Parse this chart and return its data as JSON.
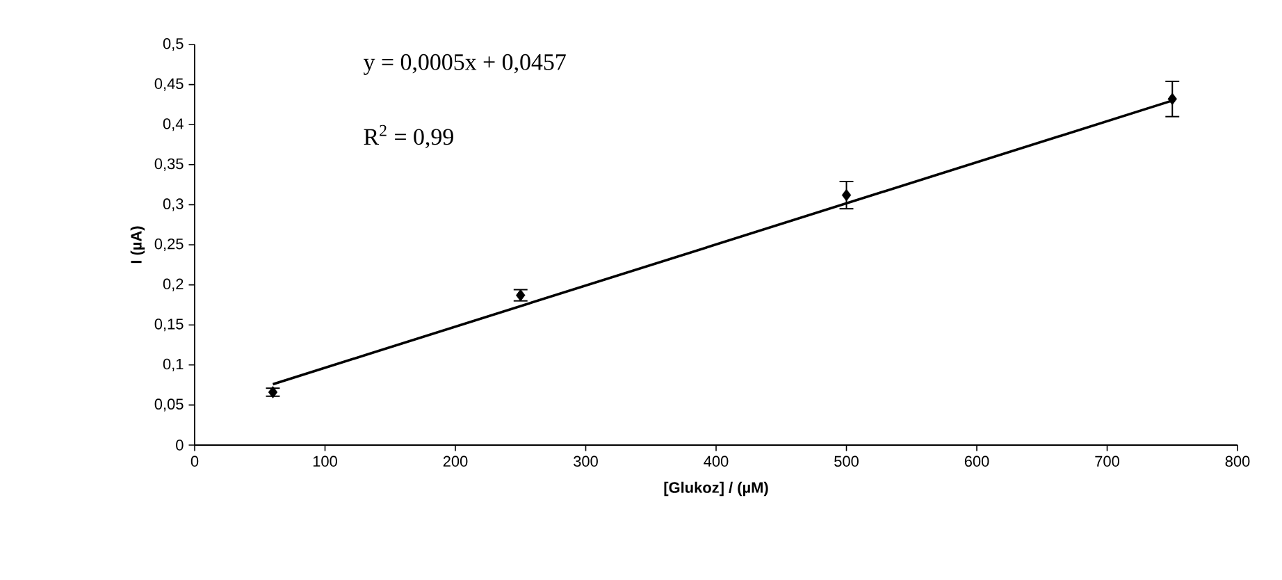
{
  "chart_data": {
    "type": "scatter",
    "xlabel": "[Glukoz] / (µM)",
    "ylabel": "I (µA)",
    "annotations": [
      "y = 0,0005x + 0,0457",
      "R$^{2}$ = 0,99"
    ],
    "xlim": [
      0,
      800
    ],
    "xticks": [
      0,
      100,
      200,
      300,
      400,
      500,
      600,
      700,
      800
    ],
    "ylim": [
      0,
      0.5
    ],
    "yticks": [
      0,
      {
        "value": 0.05,
        "label": "0,05"
      },
      {
        "value": 0.1,
        "label": "0,1"
      },
      {
        "value": 0.15,
        "label": "0,15"
      },
      {
        "value": 0.2,
        "label": "0,2"
      },
      {
        "value": 0.25,
        "label": "0,25"
      },
      {
        "value": 0.3,
        "label": "0,3"
      },
      {
        "value": 0.35,
        "label": "0,35"
      },
      {
        "value": 0.4,
        "label": "0,4"
      },
      {
        "value": 0.45,
        "label": "0,45"
      },
      {
        "value": 0.5,
        "label": "0,5"
      }
    ],
    "marker": "diamond",
    "series": [
      {
        "color": "#000000",
        "x": [
          60,
          250,
          500,
          750
        ],
        "values": [
          0.066,
          0.187,
          0.312,
          0.432
        ],
        "errors": [
          0.005,
          0.007,
          0.017,
          0.022
        ]
      },
      {
        "type": "line",
        "marker": "none",
        "color": "#000000",
        "x": [
          60,
          750
        ],
        "values": [
          0.076,
          0.43
        ]
      }
    ]
  }
}
